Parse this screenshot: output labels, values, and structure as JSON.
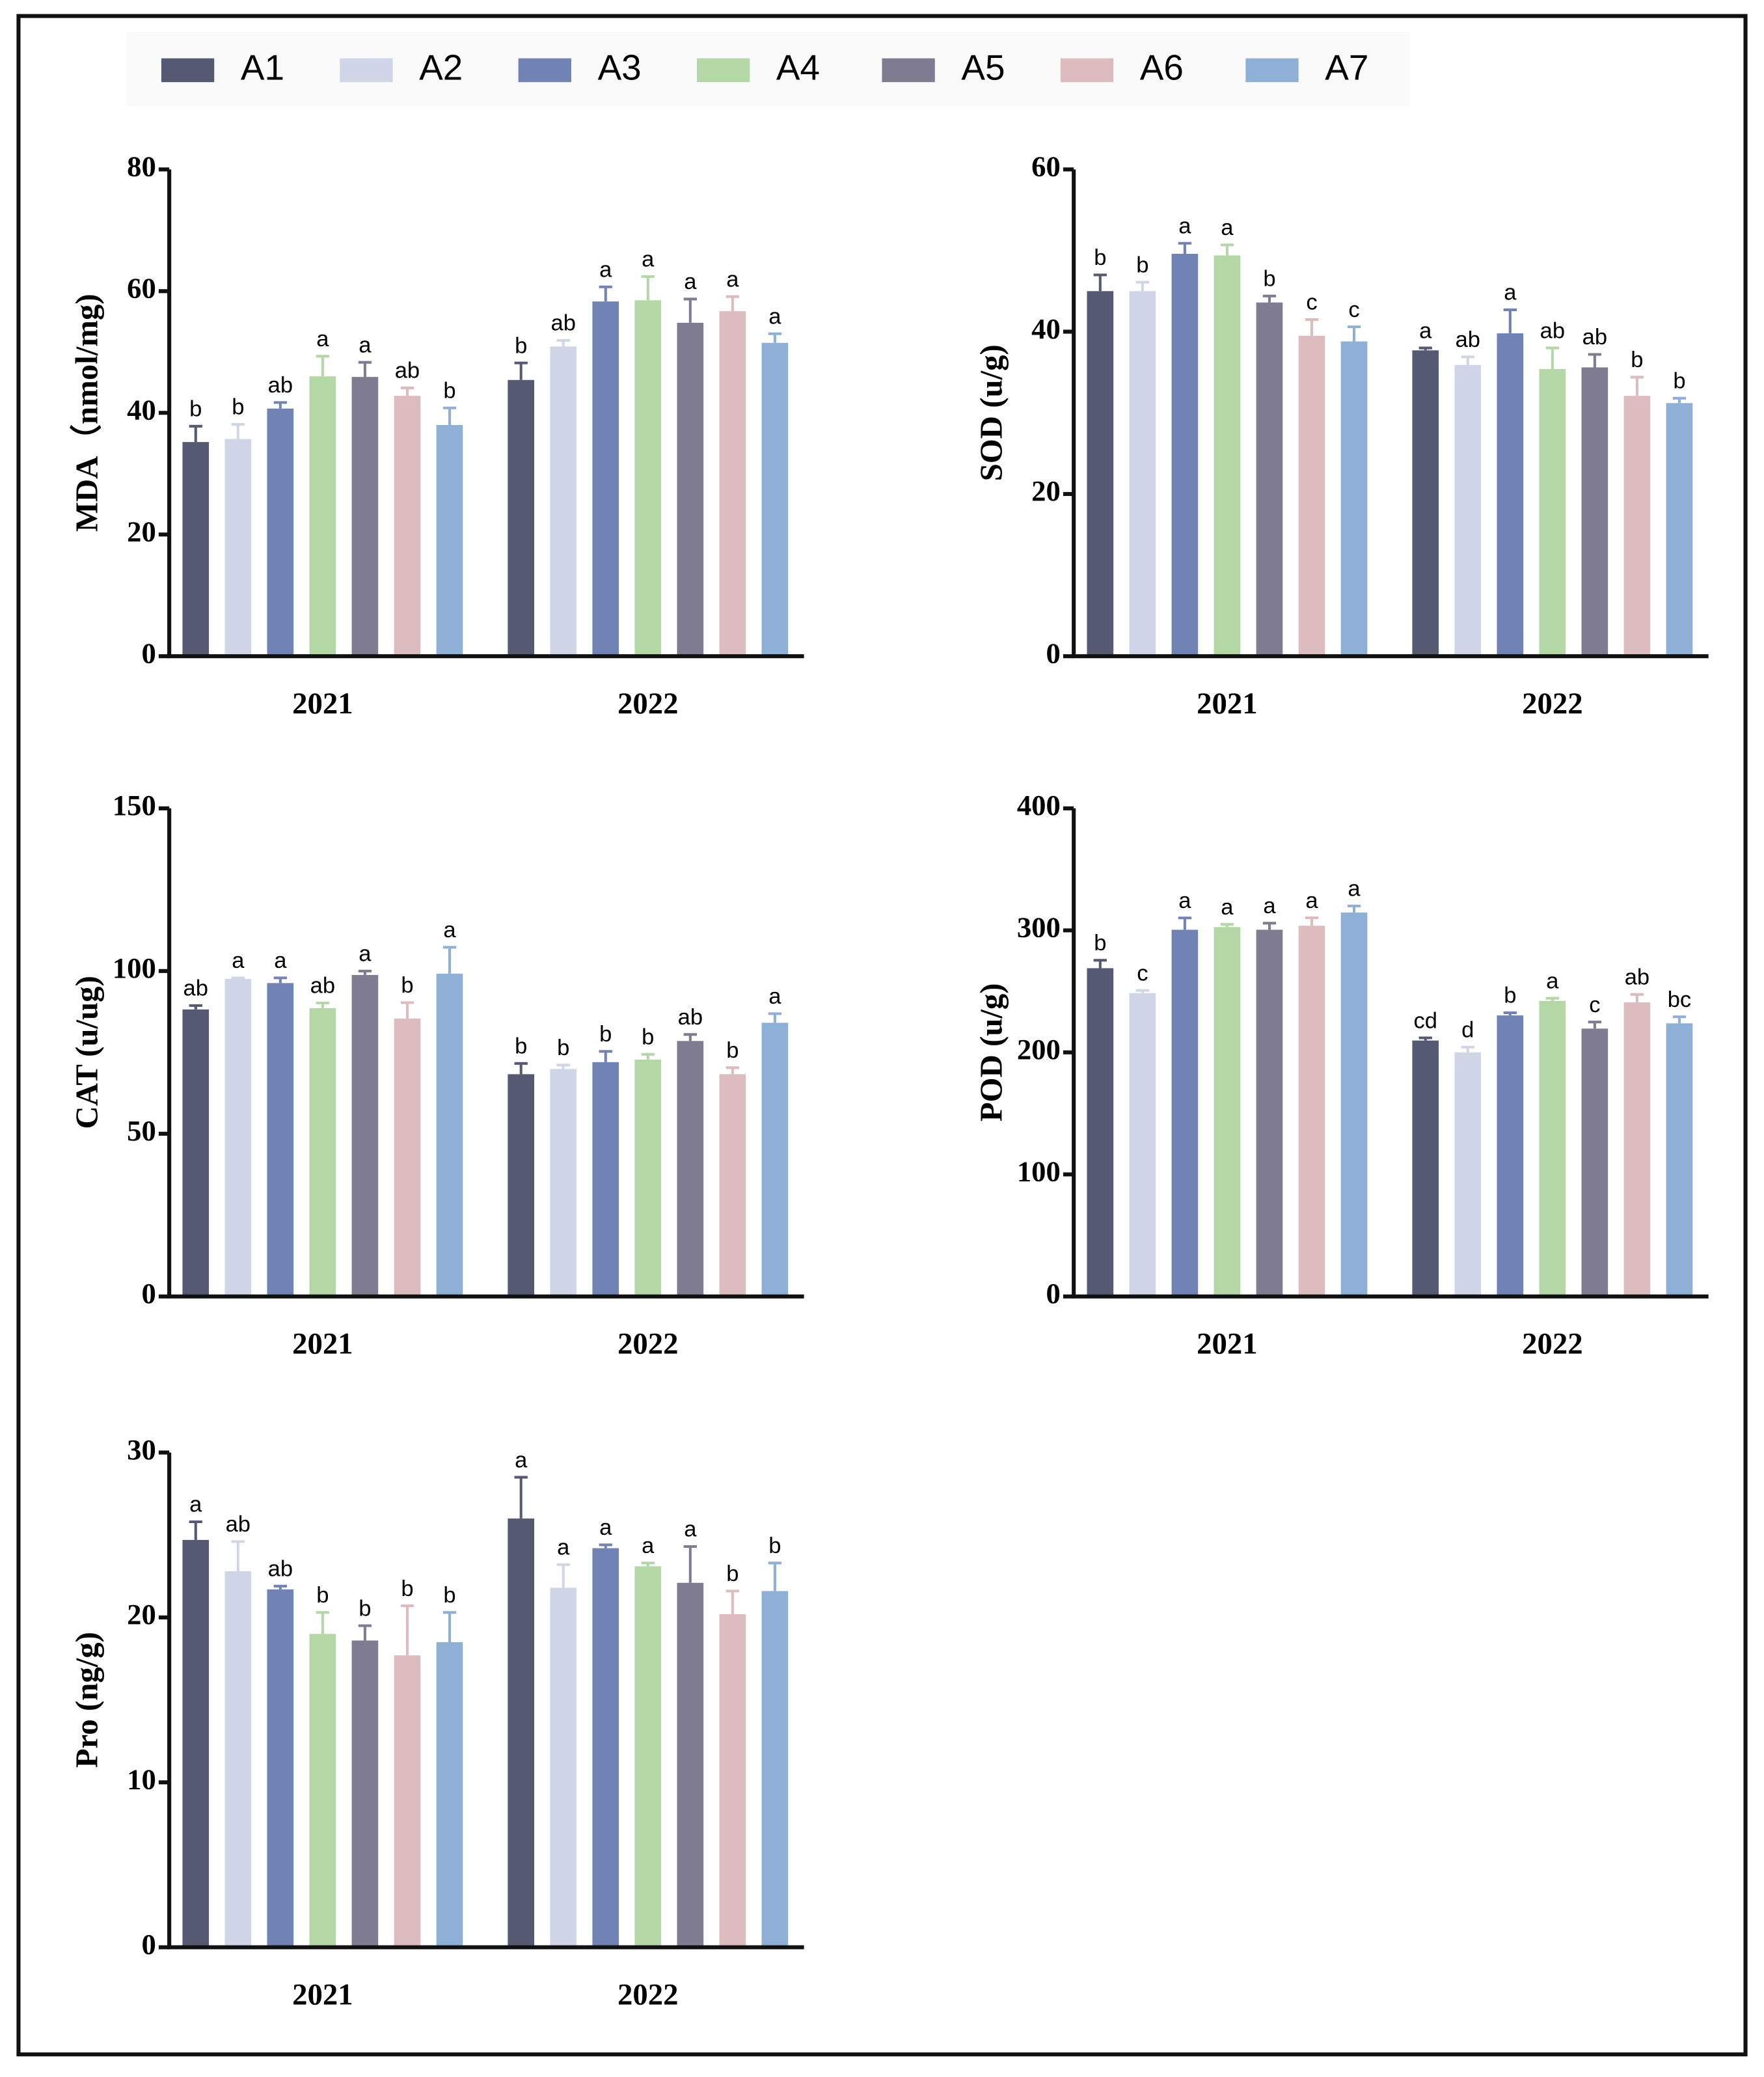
{
  "legend": [
    {
      "name": "A1",
      "color": "#555a72"
    },
    {
      "name": "A2",
      "color": "#d0d6e8"
    },
    {
      "name": "A3",
      "color": "#7083b4"
    },
    {
      "name": "A4",
      "color": "#b3d8a6"
    },
    {
      "name": "A5",
      "color": "#7f7b90"
    },
    {
      "name": "A6",
      "color": "#ddbcc0"
    },
    {
      "name": "A7",
      "color": "#8fb0d6"
    }
  ],
  "chart_data": [
    {
      "type": "bar",
      "y_label": "MDA（nmol/mg)",
      "categories": [
        "2021",
        "2022"
      ],
      "ylim": [
        0,
        80
      ],
      "yticks": [
        0,
        20,
        40,
        60,
        80
      ],
      "series": [
        {
          "values": [
            35.2,
            45.4
          ],
          "errors": [
            2.6,
            2.8
          ],
          "letters": [
            "b",
            "b"
          ]
        },
        {
          "values": [
            35.7,
            50.9
          ],
          "errors": [
            2.4,
            1
          ],
          "letters": [
            "b",
            "ab"
          ]
        },
        {
          "values": [
            40.7,
            58.3
          ],
          "errors": [
            1,
            2.4
          ],
          "letters": [
            "ab",
            "a"
          ]
        },
        {
          "values": [
            46,
            58.5
          ],
          "errors": [
            3.3,
            3.9
          ],
          "letters": [
            "a",
            "a"
          ]
        },
        {
          "values": [
            45.9,
            54.8
          ],
          "errors": [
            2.4,
            3.9
          ],
          "letters": [
            "a",
            "a"
          ]
        },
        {
          "values": [
            42.8,
            56.7
          ],
          "errors": [
            1.3,
            2.4
          ],
          "letters": [
            "ab",
            "a"
          ]
        },
        {
          "values": [
            38,
            51.5
          ],
          "errors": [
            2.8,
            1.5
          ],
          "letters": [
            "b",
            "a"
          ]
        }
      ]
    },
    {
      "type": "bar",
      "y_label": "SOD (u/g)",
      "categories": [
        "2021",
        "2022"
      ],
      "ylim": [
        0,
        60
      ],
      "yticks": [
        0,
        20,
        40,
        60
      ],
      "series": [
        {
          "values": [
            45,
            37.7
          ],
          "errors": [
            2,
            0.3
          ],
          "letters": [
            "b",
            "a"
          ]
        },
        {
          "values": [
            45,
            35.9
          ],
          "errors": [
            1.1,
            1
          ],
          "letters": [
            "b",
            "ab"
          ]
        },
        {
          "values": [
            49.6,
            39.8
          ],
          "errors": [
            1.3,
            2.9
          ],
          "letters": [
            "a",
            "a"
          ]
        },
        {
          "values": [
            49.4,
            35.4
          ],
          "errors": [
            1.3,
            2.6
          ],
          "letters": [
            "a",
            "ab"
          ]
        },
        {
          "values": [
            43.6,
            35.6
          ],
          "errors": [
            0.8,
            1.6
          ],
          "letters": [
            "b",
            "ab"
          ]
        },
        {
          "values": [
            39.5,
            32.1
          ],
          "errors": [
            2,
            2.3
          ],
          "letters": [
            "c",
            "b"
          ]
        },
        {
          "values": [
            38.8,
            31.2
          ],
          "errors": [
            1.8,
            0.6
          ],
          "letters": [
            "c",
            "b"
          ]
        }
      ]
    },
    {
      "type": "bar",
      "y_label": "CAT (u/ug)",
      "categories": [
        "2021",
        "2022"
      ],
      "ylim": [
        0,
        150
      ],
      "yticks": [
        0,
        50,
        100,
        150
      ],
      "series": [
        {
          "values": [
            88.2,
            68.3
          ],
          "errors": [
            1.2,
            3.3
          ],
          "letters": [
            "ab",
            "b"
          ]
        },
        {
          "values": [
            97.6,
            69.9
          ],
          "errors": [
            0.3,
            1.2
          ],
          "letters": [
            "a",
            "b"
          ]
        },
        {
          "values": [
            96.3,
            72
          ],
          "errors": [
            1.6,
            3.3
          ],
          "letters": [
            "a",
            "b"
          ]
        },
        {
          "values": [
            88.6,
            72.8
          ],
          "errors": [
            1.6,
            1.6
          ],
          "letters": [
            "ab",
            "b"
          ]
        },
        {
          "values": [
            98.8,
            78.5
          ],
          "errors": [
            1.2,
            2
          ],
          "letters": [
            "a",
            "ab"
          ]
        },
        {
          "values": [
            85.4,
            68.3
          ],
          "errors": [
            4.9,
            2
          ],
          "letters": [
            "b",
            "b"
          ]
        },
        {
          "values": [
            99.2,
            84.1
          ],
          "errors": [
            8.1,
            2.8
          ],
          "letters": [
            "a",
            "a"
          ]
        }
      ]
    },
    {
      "type": "bar",
      "y_label": "POD (u/g)",
      "categories": [
        "2021",
        "2022"
      ],
      "ylim": [
        0,
        400
      ],
      "yticks": [
        0,
        100,
        200,
        300,
        400
      ],
      "series": [
        {
          "values": [
            269,
            209.7
          ],
          "errors": [
            6.5,
            2.2
          ],
          "letters": [
            "b",
            "cd"
          ]
        },
        {
          "values": [
            248.6,
            200
          ],
          "errors": [
            2.2,
            4.3
          ],
          "letters": [
            "c",
            "d"
          ]
        },
        {
          "values": [
            300.5,
            230.3
          ],
          "errors": [
            9.7,
            2.2
          ],
          "letters": [
            "a",
            "b"
          ]
        },
        {
          "values": [
            302.7,
            242.2
          ],
          "errors": [
            2.2,
            2.2
          ],
          "letters": [
            "a",
            "a"
          ]
        },
        {
          "values": [
            300.5,
            219.5
          ],
          "errors": [
            5.4,
            5.4
          ],
          "letters": [
            "a",
            "c"
          ]
        },
        {
          "values": [
            303.8,
            241
          ],
          "errors": [
            6.5,
            6.5
          ],
          "letters": [
            "a",
            "ab"
          ]
        },
        {
          "values": [
            314.6,
            223.8
          ],
          "errors": [
            5.4,
            5.4
          ],
          "letters": [
            "a",
            "bc"
          ]
        }
      ]
    },
    {
      "type": "bar",
      "y_label": "Pro (ng/g)",
      "categories": [
        "2021",
        "2022"
      ],
      "ylim": [
        0,
        30
      ],
      "yticks": [
        0,
        10,
        20,
        30
      ],
      "series": [
        {
          "values": [
            24.7,
            26
          ],
          "errors": [
            1.1,
            2.5
          ],
          "letters": [
            "a",
            "a"
          ]
        },
        {
          "values": [
            22.8,
            21.8
          ],
          "errors": [
            1.8,
            1.4
          ],
          "letters": [
            "ab",
            "a"
          ]
        },
        {
          "values": [
            21.7,
            24.2
          ],
          "errors": [
            0.2,
            0.2
          ],
          "letters": [
            "ab",
            "a"
          ]
        },
        {
          "values": [
            19,
            23.1
          ],
          "errors": [
            1.3,
            0.2
          ],
          "letters": [
            "b",
            "a"
          ]
        },
        {
          "values": [
            18.6,
            22.1
          ],
          "errors": [
            0.9,
            2.2
          ],
          "letters": [
            "b",
            "a"
          ]
        },
        {
          "values": [
            17.7,
            20.2
          ],
          "errors": [
            3,
            1.4
          ],
          "letters": [
            "b",
            "b"
          ]
        },
        {
          "values": [
            18.5,
            21.6
          ],
          "errors": [
            1.8,
            1.7
          ],
          "letters": [
            "b",
            "b"
          ]
        }
      ]
    }
  ]
}
